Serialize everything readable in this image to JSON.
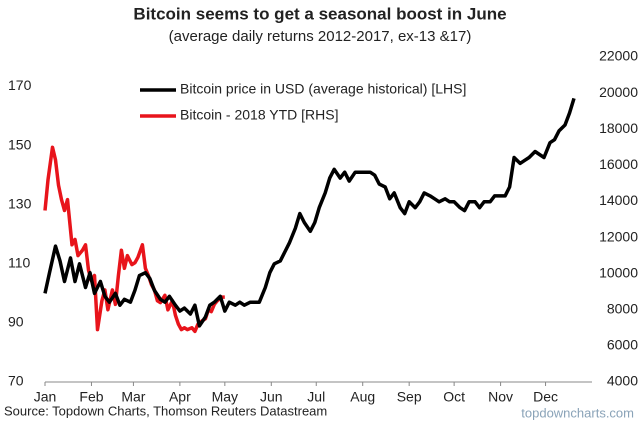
{
  "chart_data": {
    "type": "line",
    "title": "Bitcoin seems to get a seasonal boost in June",
    "subtitle": "(average daily returns 2012-2017, ex-13 &17)",
    "source": "Source: Topdown Charts, Thomson Reuters Datastream",
    "watermark": "topdowncharts.com",
    "legend": "top",
    "grid": false,
    "xlim": [
      0,
      365
    ],
    "xticks": [
      {
        "value": 0,
        "label": "Jan"
      },
      {
        "value": 31,
        "label": "Feb"
      },
      {
        "value": 59,
        "label": "Mar"
      },
      {
        "value": 90,
        "label": "Apr"
      },
      {
        "value": 120,
        "label": "May"
      },
      {
        "value": 151,
        "label": "Jun"
      },
      {
        "value": 181,
        "label": "Jul"
      },
      {
        "value": 212,
        "label": "Aug"
      },
      {
        "value": 243,
        "label": "Sep"
      },
      {
        "value": 273,
        "label": "Oct"
      },
      {
        "value": 304,
        "label": "Nov"
      },
      {
        "value": 334,
        "label": "Dec"
      }
    ],
    "ylim": [
      70,
      180
    ],
    "yticks": [
      70,
      90,
      110,
      130,
      150,
      170
    ],
    "y2lim": [
      4000,
      22000
    ],
    "y2ticks": [
      4000,
      6000,
      8000,
      10000,
      12000,
      14000,
      16000,
      18000,
      20000,
      22000
    ],
    "series": [
      {
        "name": "Bitcoin price in USD (average historical) [LHS]",
        "color": "#000000",
        "axis": "y",
        "x": [
          0,
          3,
          7,
          10,
          13,
          17,
          20,
          23,
          27,
          30,
          33,
          37,
          40,
          43,
          47,
          50,
          53,
          57,
          60,
          63,
          67,
          70,
          73,
          77,
          80,
          83,
          87,
          90,
          93,
          97,
          100,
          103,
          107,
          110,
          113,
          117,
          120,
          123,
          127,
          130,
          133,
          137,
          140,
          143,
          147,
          150,
          153,
          157,
          160,
          163,
          167,
          170,
          173,
          177,
          180,
          183,
          187,
          190,
          193,
          197,
          200,
          203,
          207,
          210,
          213,
          217,
          220,
          223,
          227,
          230,
          233,
          237,
          240,
          243,
          247,
          250,
          253,
          257,
          260,
          263,
          267,
          270,
          273,
          277,
          280,
          283,
          287,
          290,
          293,
          297,
          300,
          303,
          307,
          310,
          313,
          317,
          320,
          323,
          327,
          330,
          333,
          337,
          340,
          343,
          347,
          350,
          353
        ],
        "values": [
          100,
          107,
          116,
          111,
          104,
          112,
          104,
          110,
          102,
          107,
          100,
          104,
          99,
          97,
          100,
          96,
          98,
          97,
          101,
          106,
          107,
          105,
          101,
          98,
          97,
          99,
          96,
          94,
          95,
          93,
          96,
          89,
          92,
          96,
          97,
          99,
          94,
          97,
          96,
          97,
          96,
          97,
          97,
          97,
          102,
          107,
          110,
          111,
          114,
          117,
          122,
          127,
          124,
          121,
          124,
          129,
          134,
          139,
          142,
          139,
          141,
          138,
          141,
          141,
          141,
          141,
          140,
          137,
          136,
          132,
          134,
          129,
          127,
          131,
          129,
          131,
          134,
          133,
          132,
          131,
          132,
          131,
          131,
          129,
          128,
          131,
          131,
          129,
          131,
          131,
          133,
          133,
          133,
          136,
          146,
          144,
          145,
          146,
          148,
          147,
          146,
          151,
          152,
          155,
          157,
          161,
          166
        ]
      },
      {
        "name": "Bitcoin - 2018 YTD [RHS]",
        "color": "#e8141b",
        "axis": "y2",
        "x": [
          0,
          2,
          5,
          7,
          9,
          11,
          13,
          15,
          18,
          20,
          22,
          25,
          27,
          29,
          31,
          33,
          35,
          38,
          40,
          42,
          45,
          47,
          49,
          51,
          53,
          55,
          58,
          60,
          62,
          65,
          67,
          69,
          71,
          73,
          75,
          77,
          80,
          82,
          85,
          87,
          89,
          91,
          93,
          95,
          98,
          100,
          102,
          105,
          107,
          109,
          111,
          113,
          115,
          118,
          120
        ],
        "values": [
          13500,
          15200,
          17000,
          16300,
          14900,
          14100,
          13500,
          14100,
          11600,
          11900,
          11000,
          11300,
          11600,
          10200,
          9600,
          9900,
          6900,
          8500,
          9100,
          8000,
          9100,
          8300,
          9900,
          11300,
          10300,
          11000,
          10500,
          10600,
          10900,
          11600,
          10300,
          9900,
          9400,
          9100,
          8500,
          8400,
          8800,
          8000,
          8500,
          7700,
          7200,
          6900,
          7000,
          6900,
          7000,
          6800,
          7200,
          7400,
          7500,
          8000,
          7900,
          8300,
          8500,
          8700,
          8700
        ]
      }
    ]
  }
}
